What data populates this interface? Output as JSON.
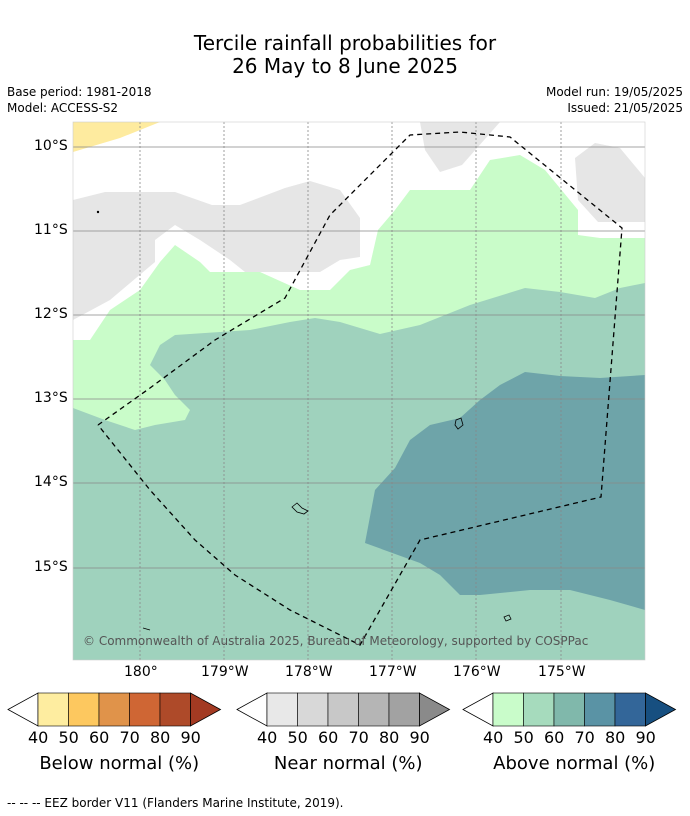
{
  "title_line1": "Tercile rainfall probabilities for",
  "title_line2": "26 May to 8 June 2025",
  "base_period": "Base period: 1981-2018",
  "model": "Model: ACCESS-S2",
  "model_run": "Model run: 19/05/2025",
  "issued": "Issued: 21/05/2025",
  "map": {
    "lat_labels": [
      "10°S",
      "11°S",
      "12°S",
      "13°S",
      "14°S",
      "15°S"
    ],
    "lon_labels": [
      "180°",
      "179°W",
      "178°W",
      "177°W",
      "176°W",
      "175°W"
    ],
    "copyright": "© Commonwealth of Australia 2025, Bureau of Meteorology, supported by COSPPac",
    "colors": {
      "below_40": "#feeb9f",
      "near_40": "#e6e6e6",
      "above_40": "#c9fcc9",
      "above_50": "#9fd2bd",
      "above_60": "#6ea4a9",
      "grid": "#888888"
    }
  },
  "colorbars": [
    {
      "label": "Below normal (%)",
      "ticks": [
        "40",
        "50",
        "60",
        "70",
        "80",
        "90"
      ],
      "colors": [
        "#feeda0",
        "#fdc85f",
        "#e0934a",
        "#cf6634",
        "#ae4a29",
        "#a33a22"
      ]
    },
    {
      "label": "Near normal (%)",
      "ticks": [
        "40",
        "50",
        "60",
        "70",
        "80",
        "90"
      ],
      "colors": [
        "#e8e8e8",
        "#d8d8d8",
        "#c8c8c8",
        "#b5b5b5",
        "#a2a2a2",
        "#8a8a8a"
      ]
    },
    {
      "label": "Above normal (%)",
      "ticks": [
        "40",
        "50",
        "60",
        "70",
        "80",
        "90"
      ],
      "colors": [
        "#c9fcca",
        "#a6dbbd",
        "#80b8ab",
        "#5a93a5",
        "#336699",
        "#174f80"
      ]
    }
  ],
  "footer": "--  --  -- EEZ border V11 (Flanders Marine Institute, 2019)."
}
